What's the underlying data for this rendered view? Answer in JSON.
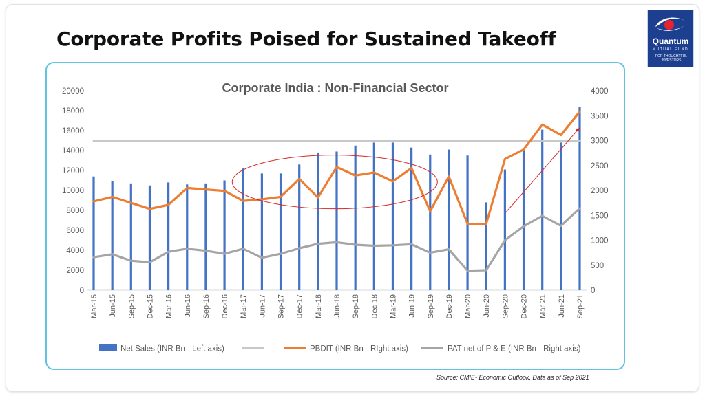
{
  "slide": {
    "title": "Corporate Profits Poised for Sustained Takeoff",
    "source": "Source: CMIE- Economic Outlook, Data as of Sep 2021"
  },
  "logo": {
    "name": "Quantum",
    "sub": "MUTUAL FUND",
    "tagline": "FOR THOUGHTFUL INVESTORS",
    "colors": {
      "background": "#1d3f8f",
      "emblem": "#e8222e"
    }
  },
  "chart_data": {
    "type": "bar",
    "title": "Corporate India : Non-Financial Sector",
    "categories": [
      "Mar-15",
      "Jun-15",
      "Sep-15",
      "Dec-15",
      "Mar-16",
      "Jun-16",
      "Sep-16",
      "Dec-16",
      "Mar-17",
      "Jun-17",
      "Sep-17",
      "Dec-17",
      "Mar-18",
      "Jun-18",
      "Sep-18",
      "Dec-18",
      "Mar-19",
      "Jun-19",
      "Sep-19",
      "Dec-19",
      "Mar-20",
      "Jun-20",
      "Sep-20",
      "Dec-20",
      "Mar-21",
      "Jun-21",
      "Sep-21"
    ],
    "y_left": {
      "ylim": [
        0,
        20000
      ],
      "ticks": [
        "0",
        "2000",
        "4000",
        "6000",
        "8000",
        "10000",
        "12000",
        "14000",
        "16000",
        "18000",
        "20000"
      ]
    },
    "y_right": {
      "ylim": [
        0,
        4000
      ],
      "ticks": [
        "0",
        "500",
        "1000",
        "1500",
        "2000",
        "2500",
        "3000",
        "3500",
        "4000"
      ]
    },
    "series": [
      {
        "name": "Net Sales (INR Bn - Left axis)",
        "type": "bar",
        "axis": "left",
        "color": "#4472c4",
        "values": [
          11400,
          10900,
          10700,
          10500,
          10800,
          10600,
          10700,
          11000,
          12200,
          11700,
          11700,
          12600,
          13800,
          13900,
          14500,
          14800,
          14800,
          14300,
          13600,
          14100,
          13500,
          8800,
          12100,
          14100,
          16100,
          14800,
          18400
        ]
      },
      {
        "name": "",
        "type": "line",
        "axis": "right",
        "color": "#c8c8c8",
        "values": [
          3000,
          3000,
          3000,
          3000,
          3000,
          3000,
          3000,
          3000,
          3000,
          3000,
          3000,
          3000,
          3000,
          3000,
          3000,
          3000,
          3000,
          3000,
          3000,
          3000,
          3000,
          3000,
          3000,
          3000,
          3000,
          3000,
          3000
        ]
      },
      {
        "name": "PBDIT (INR Bn - RIght axis)",
        "type": "line",
        "axis": "right",
        "color": "#ed7d31",
        "values": [
          1780,
          1870,
          1750,
          1630,
          1710,
          2050,
          2020,
          1990,
          1790,
          1820,
          1870,
          2230,
          1860,
          2470,
          2300,
          2360,
          2180,
          2450,
          1580,
          2280,
          1330,
          1330,
          2630,
          2820,
          3320,
          3110,
          3580
        ]
      },
      {
        "name": "PAT net of P & E (INR Bn - Right axis)",
        "type": "line",
        "axis": "right",
        "color": "#a5a5a5",
        "values": [
          660,
          720,
          590,
          560,
          770,
          830,
          790,
          730,
          830,
          650,
          730,
          840,
          930,
          960,
          910,
          890,
          900,
          920,
          750,
          820,
          390,
          400,
          1000,
          1280,
          1490,
          1290,
          1640
        ]
      }
    ],
    "legend": {
      "position": "bottom"
    },
    "annotations": {
      "ellipse_color": "#d62828",
      "arrow_color": "#d62828"
    },
    "grid": false
  }
}
